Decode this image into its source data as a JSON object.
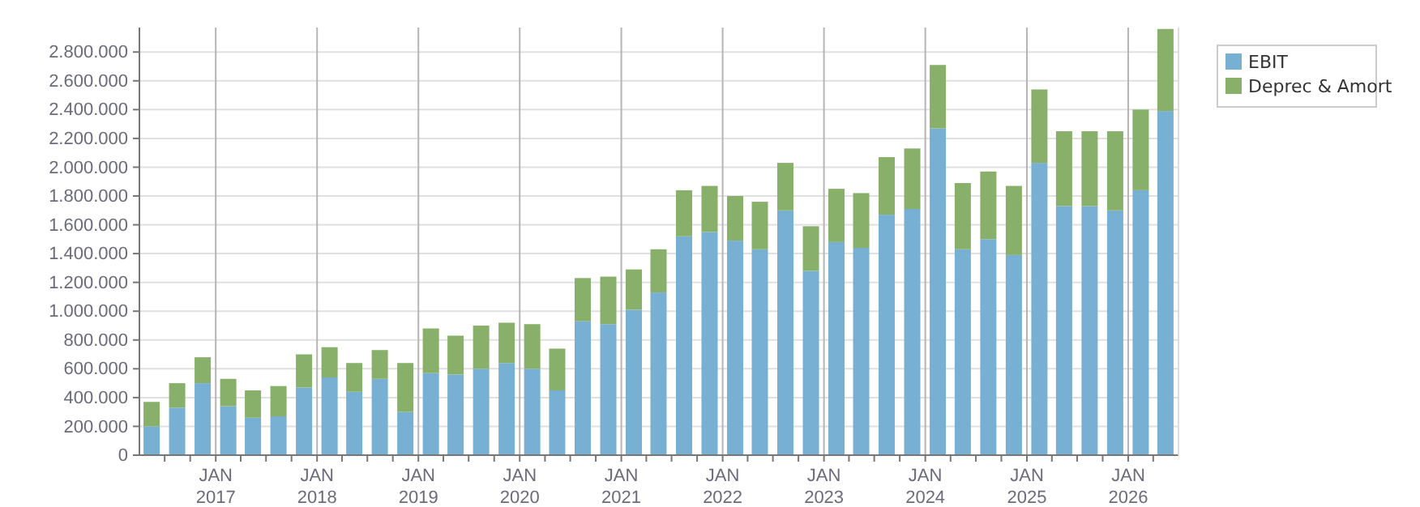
{
  "chart_data": {
    "type": "bar",
    "stacked": true,
    "grid": true,
    "legend": "top right",
    "x": [
      "2016-05-15",
      "2016-08-15",
      "2016-11-15",
      "2017-02-15",
      "2017-05-15",
      "2017-08-15",
      "2017-11-15",
      "2018-02-15",
      "2018-05-15",
      "2018-08-15",
      "2018-11-15",
      "2019-02-15",
      "2019-05-15",
      "2019-08-15",
      "2019-11-15",
      "2020-02-15",
      "2020-05-15",
      "2020-08-15",
      "2020-11-15",
      "2021-02-15",
      "2021-05-15",
      "2021-08-15",
      "2021-11-15",
      "2022-02-15",
      "2022-05-15",
      "2022-08-15",
      "2022-11-15",
      "2023-02-15",
      "2023-05-15",
      "2023-08-15",
      "2023-11-15",
      "2024-02-15",
      "2024-05-15",
      "2024-08-15",
      "2024-11-15",
      "2025-02-15",
      "2025-05-15",
      "2025-08-15",
      "2025-11-15",
      "2026-02-15",
      "2026-05-15"
    ],
    "xlim": [
      "2016-04-01",
      "2026-07-01"
    ],
    "xticks": [
      {
        "value": "2016-07-01",
        "label": null
      },
      {
        "value": "2016-10-01",
        "label": null
      },
      {
        "value": "2017-01-01",
        "label": "JAN\n2017"
      },
      {
        "value": "2017-04-01",
        "label": null
      },
      {
        "value": "2017-07-01",
        "label": null
      },
      {
        "value": "2017-10-01",
        "label": null
      },
      {
        "value": "2018-01-01",
        "label": "JAN\n2018"
      },
      {
        "value": "2018-04-01",
        "label": null
      },
      {
        "value": "2018-07-01",
        "label": null
      },
      {
        "value": "2018-10-01",
        "label": null
      },
      {
        "value": "2019-01-01",
        "label": "JAN\n2019"
      },
      {
        "value": "2019-04-01",
        "label": null
      },
      {
        "value": "2019-07-01",
        "label": null
      },
      {
        "value": "2019-10-01",
        "label": null
      },
      {
        "value": "2020-01-01",
        "label": "JAN\n2020"
      },
      {
        "value": "2020-04-01",
        "label": null
      },
      {
        "value": "2020-07-01",
        "label": null
      },
      {
        "value": "2020-10-01",
        "label": null
      },
      {
        "value": "2021-01-01",
        "label": "JAN\n2021"
      },
      {
        "value": "2021-04-01",
        "label": null
      },
      {
        "value": "2021-07-01",
        "label": null
      },
      {
        "value": "2021-10-01",
        "label": null
      },
      {
        "value": "2022-01-01",
        "label": "JAN\n2022"
      },
      {
        "value": "2022-04-01",
        "label": null
      },
      {
        "value": "2022-07-01",
        "label": null
      },
      {
        "value": "2022-10-01",
        "label": null
      },
      {
        "value": "2023-01-01",
        "label": "JAN\n2023"
      },
      {
        "value": "2023-04-01",
        "label": null
      },
      {
        "value": "2023-07-01",
        "label": null
      },
      {
        "value": "2023-10-01",
        "label": null
      },
      {
        "value": "2024-01-01",
        "label": "JAN\n2024"
      },
      {
        "value": "2024-04-01",
        "label": null
      },
      {
        "value": "2024-07-01",
        "label": null
      },
      {
        "value": "2024-10-01",
        "label": null
      },
      {
        "value": "2025-01-01",
        "label": "JAN\n2025"
      },
      {
        "value": "2025-04-01",
        "label": null
      },
      {
        "value": "2025-07-01",
        "label": null
      },
      {
        "value": "2025-10-01",
        "label": null
      },
      {
        "value": "2026-01-01",
        "label": "JAN\n2026"
      },
      {
        "value": "2026-04-01",
        "label": null
      }
    ],
    "ylim": [
      0,
      2970000
    ],
    "yticks": [
      0,
      {
        "value": 200000,
        "label": "200.000"
      },
      {
        "value": 400000,
        "label": "400.000"
      },
      {
        "value": 600000,
        "label": "600.000"
      },
      {
        "value": 800000,
        "label": "800.000"
      },
      {
        "value": 1000000,
        "label": "1.000.000"
      },
      {
        "value": 1200000,
        "label": "1.200.000"
      },
      {
        "value": 1400000,
        "label": "1.400.000"
      },
      {
        "value": 1600000,
        "label": "1.600.000"
      },
      {
        "value": 1800000,
        "label": "1.800.000"
      },
      {
        "value": 2000000,
        "label": "2.000.000"
      },
      {
        "value": 2200000,
        "label": "2.200.000"
      },
      {
        "value": 2400000,
        "label": "2.400.000"
      },
      {
        "value": 2600000,
        "label": "2.600.000"
      },
      {
        "value": 2800000,
        "label": "2.800.000"
      }
    ],
    "series": [
      {
        "name": "EBIT",
        "color": "#77b0d3",
        "values": [
          200000,
          330000,
          500000,
          340000,
          260000,
          270000,
          470000,
          540000,
          440000,
          530000,
          300000,
          570000,
          560000,
          600000,
          640000,
          600000,
          450000,
          930000,
          910000,
          1010000,
          1130000,
          1520000,
          1550000,
          1490000,
          1430000,
          1700000,
          1280000,
          1480000,
          1440000,
          1670000,
          1710000,
          2270000,
          1430000,
          1500000,
          1390000,
          2030000,
          1730000,
          1730000,
          1700000,
          1840000,
          2390000
        ]
      },
      {
        "name": "Deprec & Amort",
        "color": "#88b06a",
        "values": [
          170000,
          170000,
          180000,
          190000,
          190000,
          210000,
          230000,
          210000,
          200000,
          200000,
          340000,
          310000,
          270000,
          300000,
          280000,
          310000,
          290000,
          300000,
          330000,
          280000,
          300000,
          320000,
          320000,
          310000,
          330000,
          330000,
          310000,
          370000,
          380000,
          400000,
          420000,
          440000,
          460000,
          470000,
          480000,
          510000,
          520000,
          520000,
          550000,
          560000,
          570000
        ]
      }
    ]
  }
}
